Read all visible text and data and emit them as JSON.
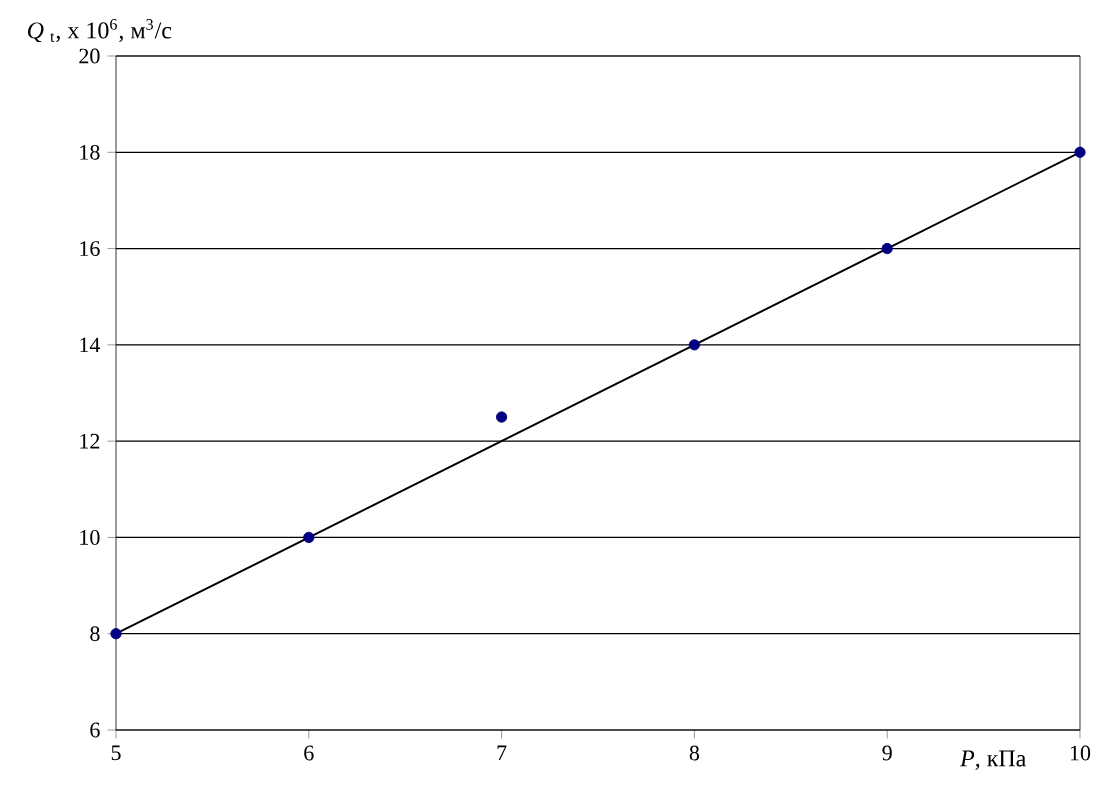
{
  "chart_data": {
    "type": "scatter",
    "xlabel": "*P*, кПа",
    "ylabel": "*Q* $_{t}$, x 10$^{6}$, м$^{3}$/с",
    "xlim": [
      5,
      10
    ],
    "xticks": [
      5,
      6,
      7,
      8,
      9,
      10
    ],
    "ylim": [
      6,
      20
    ],
    "yticks": [
      6,
      8,
      10,
      12,
      14,
      16,
      18,
      20
    ],
    "grid": "y",
    "marker": "circle",
    "series": [
      {
        "color": "#000080",
        "x": [
          5,
          6,
          7,
          8,
          9,
          10
        ],
        "values": [
          8,
          10,
          12.5,
          14,
          16,
          18
        ]
      },
      {
        "type": "line",
        "color": "#000000",
        "marker": "none",
        "x": [
          5,
          10
        ],
        "values": [
          8,
          18
        ]
      }
    ]
  }
}
